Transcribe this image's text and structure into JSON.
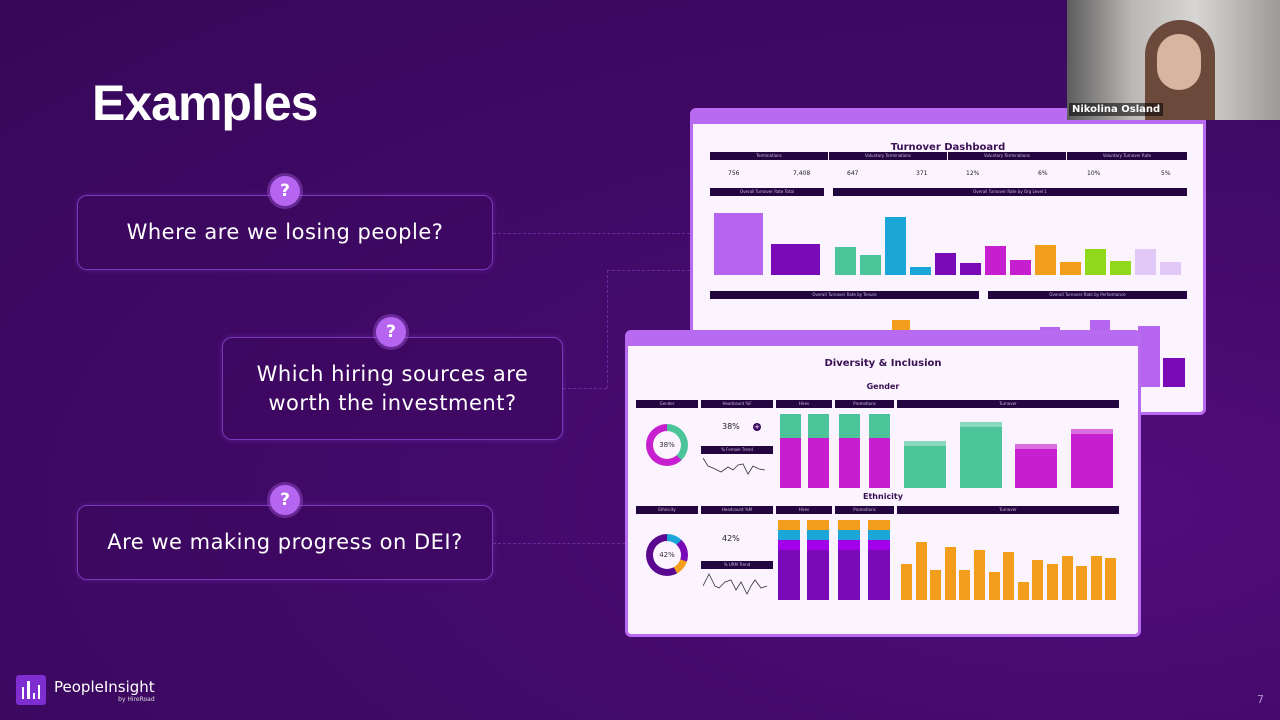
{
  "slide": {
    "title": "Examples",
    "page_number": "7"
  },
  "questions": [
    {
      "icon": "question-icon",
      "text": "Where are we losing people?"
    },
    {
      "icon": "question-icon",
      "text": "Which hiring sources are worth the investment?"
    },
    {
      "icon": "question-icon",
      "text": "Are we making progress on DEI?"
    }
  ],
  "turnover_dashboard": {
    "title": "Turnover Dashboard",
    "kpis": [
      {
        "label": "Terminations",
        "values": [
          "756",
          "7,408"
        ]
      },
      {
        "label": "Voluntary Terminations",
        "values": [
          "647",
          "371"
        ]
      },
      {
        "label": "Voluntary Terminations",
        "values": [
          "12%",
          "6%"
        ]
      },
      {
        "label": "Voluntary Turnover Rate",
        "values": [
          "10%",
          "5%"
        ]
      }
    ],
    "sections": [
      "Overall Turnover Rate Total",
      "Overall Turnover Rate by Org Level 1",
      "Overall Turnover Rate by Tenure",
      "Overall Turnover Rate by Performance"
    ]
  },
  "di_dashboard": {
    "title": "Diversity & Inclusion",
    "gender": {
      "heading": "Gender",
      "headers": [
        "Gender",
        "Headcount %F",
        "Hires",
        "Promotions",
        "Turnover"
      ],
      "donut_value": "38%",
      "headcount_value": "38%",
      "trend_label": "% Female Trend"
    },
    "ethnicity": {
      "heading": "Ethnicity",
      "headers": [
        "Ethnicity",
        "Headcount %M",
        "Hires",
        "Promotions",
        "Turnover"
      ],
      "donut_value": "42%",
      "headcount_value": "42%",
      "trend_label": "% URM Trend"
    }
  },
  "video": {
    "participant_name": "Nikolina Osland"
  },
  "branding": {
    "logo_text": "PeopleInsight",
    "logo_sub": "by HireRoad"
  },
  "colors": {
    "accent": "#b565f0",
    "teal": "#4cc49a",
    "magenta": "#c71fd0",
    "orange": "#f29d1b",
    "purple": "#7a0ab8"
  }
}
